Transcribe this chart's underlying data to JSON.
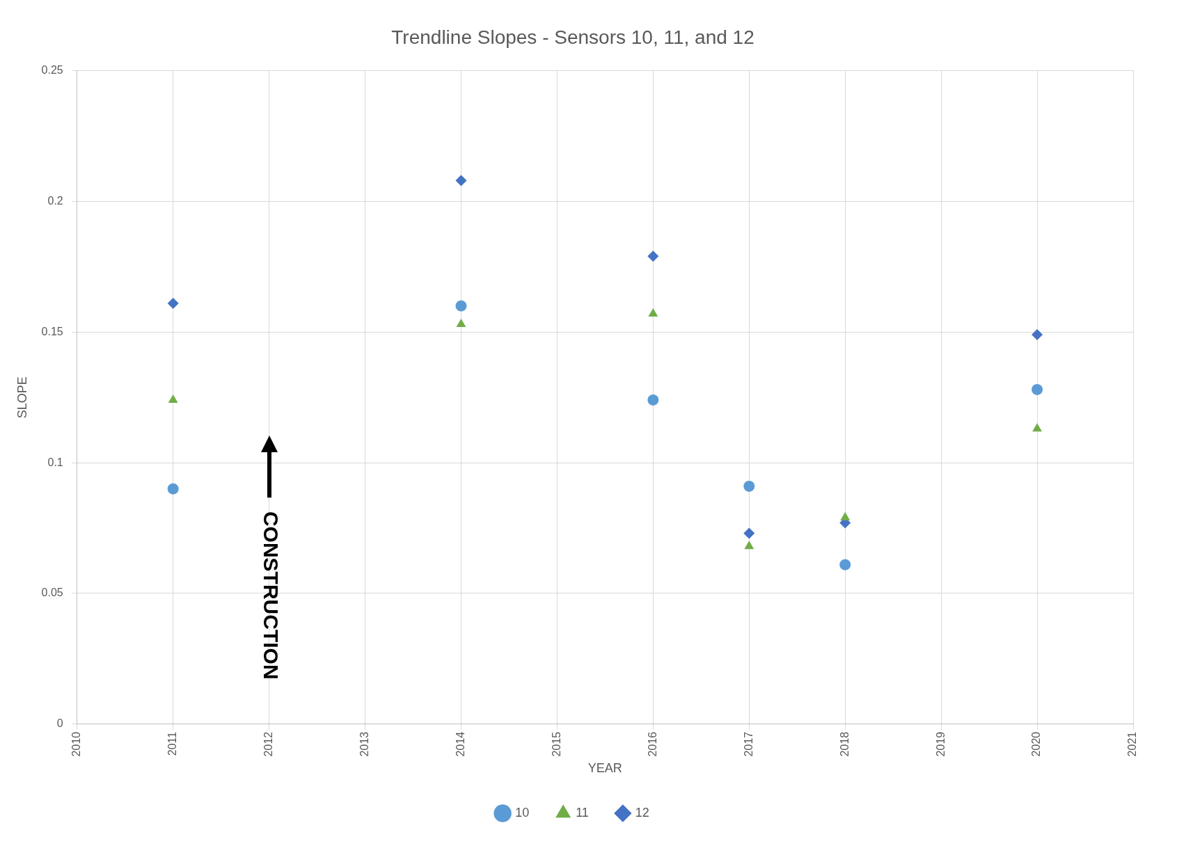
{
  "chart_data": {
    "type": "scatter",
    "title": "Trendline Slopes - Sensors 10, 11, and 12",
    "xlabel": "YEAR",
    "ylabel": "SLOPE",
    "x": [
      2011,
      2014,
      2016,
      2017,
      2018,
      2020
    ],
    "series": [
      {
        "name": "10",
        "color": "#5b9bd5",
        "marker": "circle",
        "values": [
          0.09,
          0.16,
          0.124,
          0.091,
          0.061,
          0.128
        ]
      },
      {
        "name": "11",
        "color": "#70ad47",
        "marker": "triangle",
        "values": [
          0.124,
          0.153,
          0.157,
          0.068,
          0.079,
          0.113
        ]
      },
      {
        "name": "12",
        "color": "#4472c4",
        "marker": "diamond",
        "values": [
          0.161,
          0.208,
          0.179,
          0.073,
          0.077,
          0.149
        ]
      }
    ],
    "xlim": [
      2010,
      2021
    ],
    "xticks": [
      2010,
      2011,
      2012,
      2013,
      2014,
      2015,
      2016,
      2017,
      2018,
      2019,
      2020,
      2021
    ],
    "ylim": [
      0,
      0.25
    ],
    "yticks": [
      0,
      0.05,
      0.1,
      0.15,
      0.2,
      0.25
    ],
    "grid": true,
    "legend": "bottom",
    "annotations": [
      "CONSTRUCTION"
    ]
  }
}
